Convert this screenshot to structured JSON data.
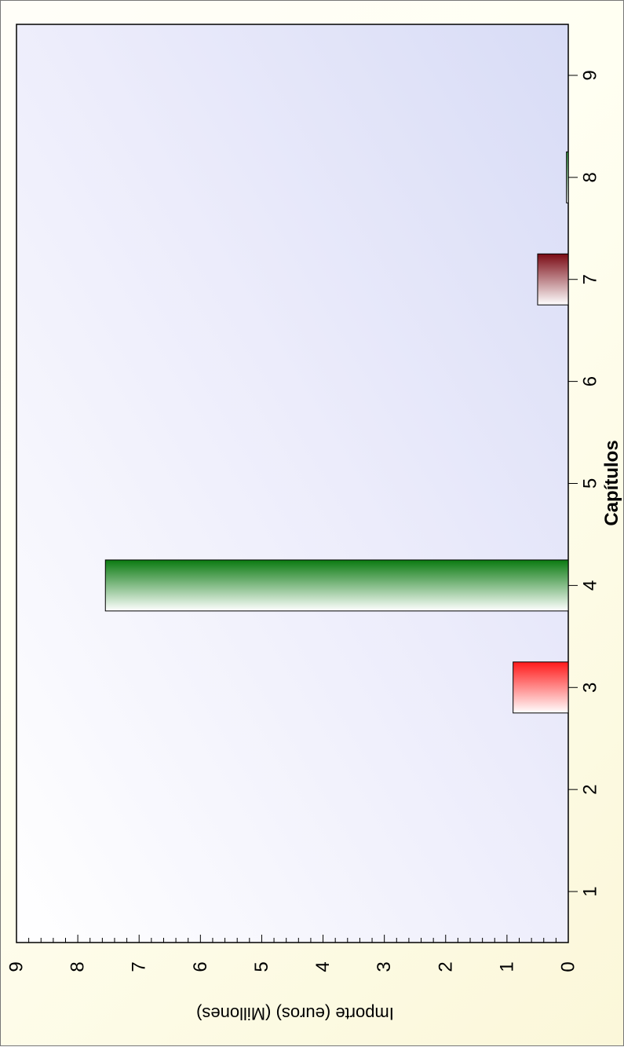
{
  "chart_data": {
    "type": "bar",
    "orientation": "rotated-90",
    "xlabel": "Capítulos",
    "ylabel": "Importe (euros) (Millones)",
    "categories": [
      "1",
      "2",
      "3",
      "4",
      "5",
      "6",
      "7",
      "8",
      "9"
    ],
    "values": [
      0,
      0,
      0.9,
      7.55,
      0,
      0,
      0.5,
      0.03,
      0
    ],
    "bar_colors": [
      "#cccccc",
      "#cccccc",
      "#ff1a1a",
      "#0a7a10",
      "#cccccc",
      "#cccccc",
      "#7a0a14",
      "#3aa64a",
      "#cccccc"
    ],
    "xlim": [
      0.5,
      9.5
    ],
    "ylim": [
      0,
      9
    ],
    "y_ticks": [
      "0",
      "1",
      "2",
      "3",
      "4",
      "5",
      "6",
      "7",
      "8",
      "9"
    ],
    "grid": false,
    "legend": "none"
  }
}
